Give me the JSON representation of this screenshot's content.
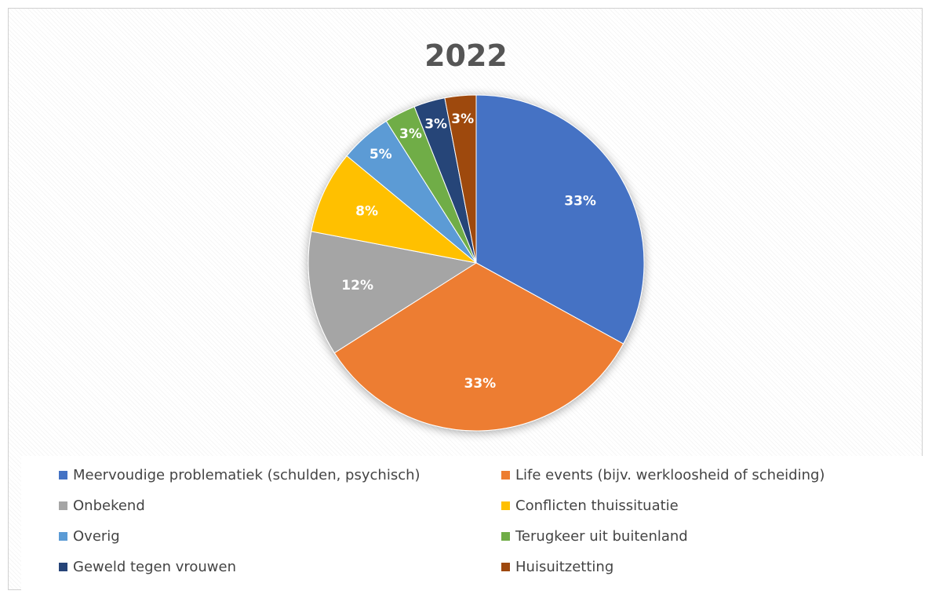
{
  "chart_data": {
    "type": "pie",
    "title": "2022",
    "slices": [
      {
        "label": "Meervoudige problematiek (schulden, psychisch)",
        "value": 33,
        "data_label": "33%",
        "color": "#4472C4"
      },
      {
        "label": "Life events (bijv. werkloosheid of scheiding)",
        "value": 33,
        "data_label": "33%",
        "color": "#ED7D31"
      },
      {
        "label": "Onbekend",
        "value": 12,
        "data_label": "12%",
        "color": "#A5A5A5"
      },
      {
        "label": "Conflicten thuissituatie",
        "value": 8,
        "data_label": "8%",
        "color": "#FFC000"
      },
      {
        "label": "Overig",
        "value": 5,
        "data_label": "5%",
        "color": "#5B9BD5"
      },
      {
        "label": "Terugkeer uit buitenland",
        "value": 3,
        "data_label": "3%",
        "color": "#70AD47"
      },
      {
        "label": "Geweld tegen vrouwen",
        "value": 3,
        "data_label": "3%",
        "color": "#264478"
      },
      {
        "label": "Huisuitzetting",
        "value": 3,
        "data_label": "3%",
        "color": "#9E480E"
      }
    ],
    "start_angle": "12 o'clock",
    "direction": "clockwise",
    "legend_position": "bottom"
  }
}
